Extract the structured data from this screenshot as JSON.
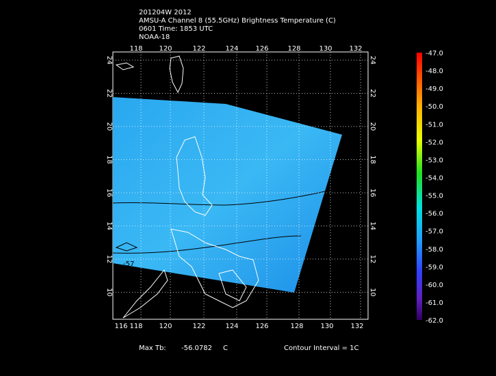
{
  "header": {
    "lines": [
      "201204W 2012",
      "AMSU-A Channel 8 (55.5GHz) Brightness Temperature (C)",
      "0601 Time: 1853 UTC",
      "NOAA-18"
    ]
  },
  "map": {
    "top_lon_labels": [
      "118",
      "120",
      "122",
      "124",
      "126",
      "128",
      "130",
      "132"
    ],
    "bottom_lon_labels": [
      "116",
      "118",
      "120",
      "122",
      "124",
      "126",
      "128",
      "130",
      "132"
    ],
    "lat_labels": [
      "24",
      "22",
      "20",
      "18",
      "16",
      "14",
      "12",
      "10"
    ],
    "contour_label": "-57"
  },
  "colorbar": {
    "labels": [
      "-47.0",
      "-48.0",
      "-49.0",
      "-50.0",
      "-51.0",
      "-52.0",
      "-53.0",
      "-54.0",
      "-55.0",
      "-56.0",
      "-57.0",
      "-58.0",
      "-59.0",
      "-60.0",
      "-61.0",
      "-62.0"
    ]
  },
  "footer": {
    "max_label": "Max Tb:",
    "max_value": "-56.0782",
    "unit": "C",
    "contour_interval": "Contour Interval = 1C"
  }
}
